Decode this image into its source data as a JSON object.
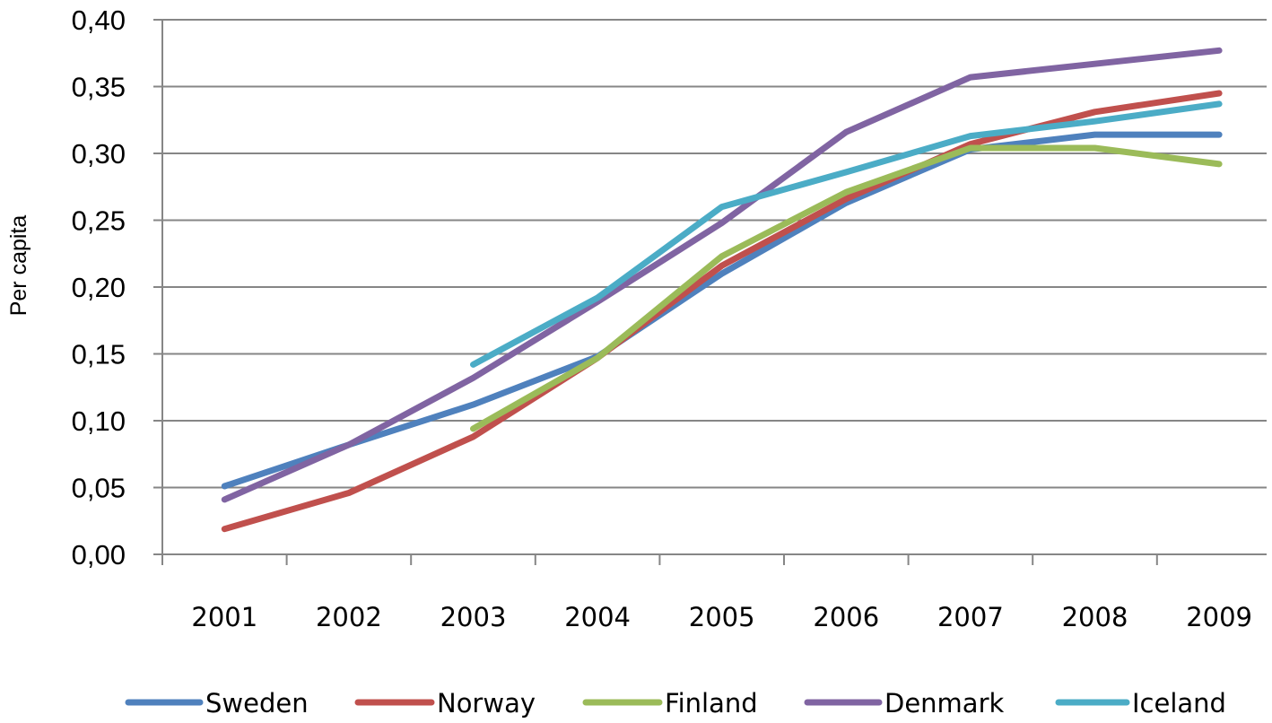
{
  "chart_data": {
    "type": "line",
    "title": "",
    "xlabel": "",
    "ylabel": "Per capita",
    "ylim": [
      0,
      0.4
    ],
    "yticks": [
      "0,00",
      "0,05",
      "0,10",
      "0,15",
      "0,20",
      "0,25",
      "0,30",
      "0,35",
      "0,40"
    ],
    "categories": [
      "2001",
      "2002",
      "2003",
      "2004",
      "2005",
      "2006",
      "2007",
      "2008",
      "2009"
    ],
    "grid": "horizontal",
    "legend_position": "bottom",
    "series": [
      {
        "name": "Sweden",
        "color": "#4F81BD",
        "values": [
          0.051,
          0.082,
          0.112,
          0.148,
          0.21,
          0.263,
          0.303,
          0.314,
          0.314
        ]
      },
      {
        "name": "Norway",
        "color": "#C0504D",
        "values": [
          0.019,
          0.046,
          0.088,
          0.147,
          0.216,
          0.266,
          0.307,
          0.331,
          0.345
        ]
      },
      {
        "name": "Finland",
        "color": "#9BBB59",
        "values": [
          null,
          null,
          0.094,
          0.147,
          0.223,
          0.271,
          0.304,
          0.304,
          0.292
        ]
      },
      {
        "name": "Denmark",
        "color": "#8064A2",
        "values": [
          0.041,
          0.082,
          0.132,
          0.189,
          0.248,
          0.316,
          0.357,
          0.367,
          0.377
        ]
      },
      {
        "name": "Iceland",
        "color": "#4BACC6",
        "values": [
          null,
          null,
          0.142,
          0.192,
          0.26,
          0.286,
          0.313,
          0.324,
          0.337
        ]
      }
    ]
  }
}
